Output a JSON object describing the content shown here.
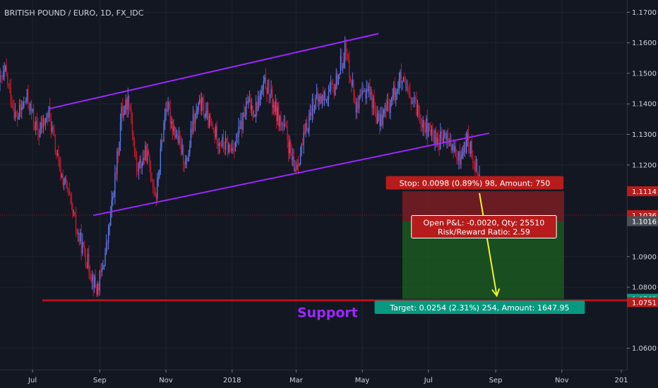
{
  "chart_data": {
    "type": "candlestick",
    "title": "BRITISH POUND / EURO, 1D, FX_IDC",
    "xlabel": "",
    "ylabel": "",
    "ylim": [
      1.053,
      1.174
    ],
    "y_ticks": [
      "1.1700",
      "1.1600",
      "1.1500",
      "1.1400",
      "1.1300",
      "1.1200",
      "1.0900",
      "1.0800",
      "1.0600"
    ],
    "x_ticks": [
      "Jul",
      "Sep",
      "Nov",
      "2018",
      "Mar",
      "May",
      "Jul",
      "Sep",
      "Nov",
      "201"
    ],
    "price_path": [
      {
        "date": "2017-06-01",
        "price": 1.147
      },
      {
        "date": "2017-06-06",
        "price": 1.15
      },
      {
        "date": "2017-06-16",
        "price": 1.135
      },
      {
        "date": "2017-06-26",
        "price": 1.142
      },
      {
        "date": "2017-07-06",
        "price": 1.13
      },
      {
        "date": "2017-07-16",
        "price": 1.137
      },
      {
        "date": "2017-07-26",
        "price": 1.118
      },
      {
        "date": "2017-08-01",
        "price": 1.113
      },
      {
        "date": "2017-08-11",
        "price": 1.098
      },
      {
        "date": "2017-08-21",
        "price": 1.088
      },
      {
        "date": "2017-08-29",
        "price": 1.079
      },
      {
        "date": "2017-09-03",
        "price": 1.085
      },
      {
        "date": "2017-09-08",
        "price": 1.095
      },
      {
        "date": "2017-09-16",
        "price": 1.118
      },
      {
        "date": "2017-09-21",
        "price": 1.137
      },
      {
        "date": "2017-09-28",
        "price": 1.142
      },
      {
        "date": "2017-10-05",
        "price": 1.118
      },
      {
        "date": "2017-10-14",
        "price": 1.124
      },
      {
        "date": "2017-10-23",
        "price": 1.11
      },
      {
        "date": "2017-11-01",
        "price": 1.14
      },
      {
        "date": "2017-11-11",
        "price": 1.129
      },
      {
        "date": "2017-11-20",
        "price": 1.12
      },
      {
        "date": "2017-11-26",
        "price": 1.134
      },
      {
        "date": "2017-12-03",
        "price": 1.14
      },
      {
        "date": "2017-12-13",
        "price": 1.132
      },
      {
        "date": "2017-12-23",
        "price": 1.127
      },
      {
        "date": "2017-12-31",
        "price": 1.125
      },
      {
        "date": "2018-01-07",
        "price": 1.13
      },
      {
        "date": "2018-01-15",
        "price": 1.14
      },
      {
        "date": "2018-01-22",
        "price": 1.138
      },
      {
        "date": "2018-02-01",
        "price": 1.147
      },
      {
        "date": "2018-02-11",
        "price": 1.137
      },
      {
        "date": "2018-02-20",
        "price": 1.13
      },
      {
        "date": "2018-02-27",
        "price": 1.118
      },
      {
        "date": "2018-03-06",
        "price": 1.125
      },
      {
        "date": "2018-03-16",
        "price": 1.14
      },
      {
        "date": "2018-03-26",
        "price": 1.142
      },
      {
        "date": "2018-04-05",
        "price": 1.145
      },
      {
        "date": "2018-04-15",
        "price": 1.158
      },
      {
        "date": "2018-04-21",
        "price": 1.148
      },
      {
        "date": "2018-04-26",
        "price": 1.138
      },
      {
        "date": "2018-05-06",
        "price": 1.146
      },
      {
        "date": "2018-05-16",
        "price": 1.134
      },
      {
        "date": "2018-05-26",
        "price": 1.14
      },
      {
        "date": "2018-06-05",
        "price": 1.148
      },
      {
        "date": "2018-06-13",
        "price": 1.142
      },
      {
        "date": "2018-06-21",
        "price": 1.138
      },
      {
        "date": "2018-07-01",
        "price": 1.131
      },
      {
        "date": "2018-07-11",
        "price": 1.128
      },
      {
        "date": "2018-07-19",
        "price": 1.129
      },
      {
        "date": "2018-07-28",
        "price": 1.121
      },
      {
        "date": "2018-08-06",
        "price": 1.128
      },
      {
        "date": "2018-08-13",
        "price": 1.121
      },
      {
        "date": "2018-08-17",
        "price": 1.117
      }
    ],
    "channel_upper": {
      "start": {
        "date": "2017-07-16",
        "price": 1.1384
      },
      "end": {
        "date": "2018-05-16",
        "price": 1.163
      }
    },
    "channel_lower": {
      "start": {
        "date": "2017-08-26",
        "price": 1.1035
      },
      "end": {
        "date": "2018-08-26",
        "price": 1.1304
      }
    },
    "support": {
      "label": "Support",
      "price": 1.0757
    },
    "position": {
      "entry": 1.1016,
      "stop": 1.1114,
      "target": 1.0762,
      "start_date": "2018-06-07",
      "end_date": "2018-11-03",
      "stop_label": "Stop: 0.0098 (0.89%) 98, Amount: 750",
      "pnl_label": "Open P&L: -0.0020, Qty: 25510",
      "rr_label": "Risk/Reward Ratio: 2.59",
      "target_label": "Target: 0.0254 (2.31%) 254, Amount: 1647.95"
    },
    "projection": {
      "from": {
        "date": "2018-08-17",
        "price": 1.1108
      },
      "to": {
        "date": "2018-09-02",
        "price": 1.0772
      }
    },
    "price_badges": [
      {
        "text": "1.1114",
        "price": 1.1114,
        "color": "#b71c1c"
      },
      {
        "text": "1.1036",
        "price": 1.1036,
        "color": "#b71c1c"
      },
      {
        "text": "1.1016",
        "price": 1.1016,
        "color": "#4a4e58"
      },
      {
        "text": "1.0762",
        "price": 1.0762,
        "color": "#089981"
      },
      {
        "text": "1.0751",
        "price": 1.0751,
        "color": "#b71c1c"
      }
    ],
    "colors": {
      "background": "#131722",
      "grid": "#1e222d",
      "up": "#5b76e6",
      "down": "#c2182b",
      "channel": "#9c27ff",
      "support": "#b5121b",
      "stop_zone": "#8a1f24",
      "target_zone": "#1b5e20",
      "arrow": "#f3f32c"
    }
  }
}
